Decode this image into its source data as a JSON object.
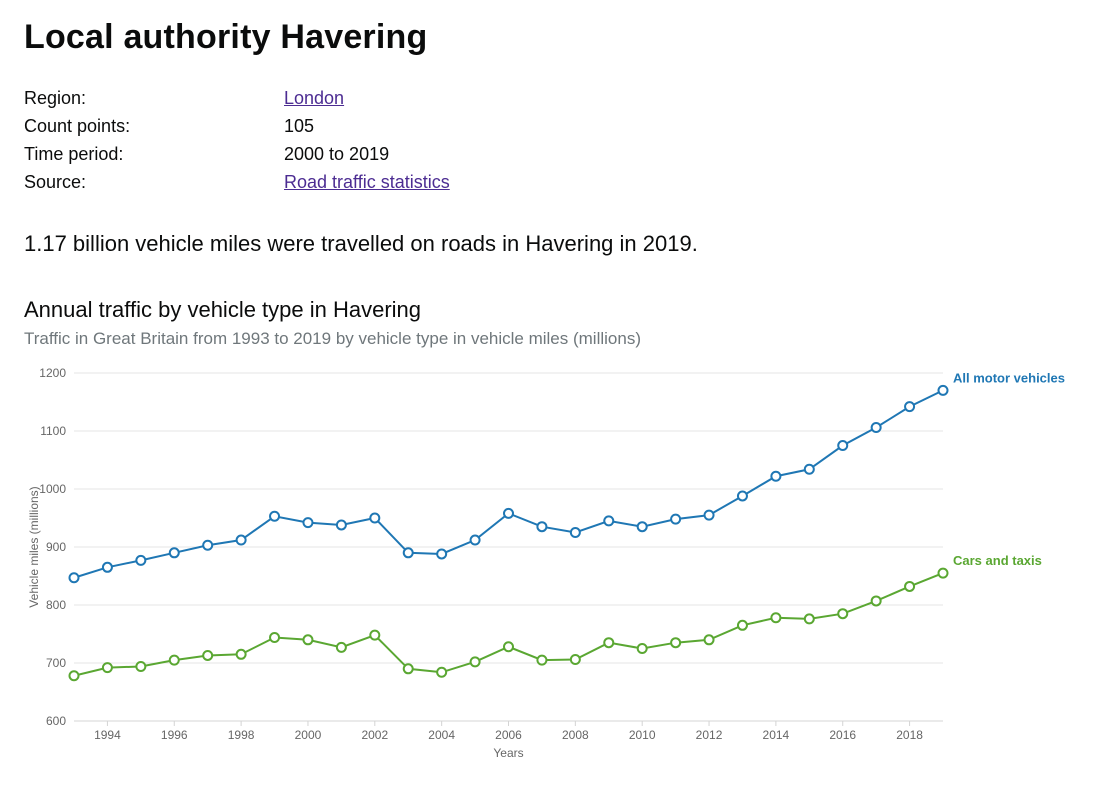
{
  "header": {
    "title": "Local authority Havering"
  },
  "meta": {
    "labels": {
      "region": "Region:",
      "count_points": "Count points:",
      "time_period": "Time period:",
      "source": "Source:"
    },
    "region_value": "London",
    "count_points_value": "105",
    "time_period_value": "2000 to 2019",
    "source_value": "Road traffic statistics"
  },
  "summary_text": "1.17 billion vehicle miles were travelled on roads in Havering in 2019.",
  "chart": {
    "title": "Annual traffic by vehicle type in Havering",
    "subtitle": "Traffic in Great Britain from 1993 to 2019 by vehicle type in vehicle miles (millions)",
    "type": "line",
    "xlabel": "Years",
    "ylabel": "Vehicle miles (millions)",
    "years": [
      1993,
      1994,
      1995,
      1996,
      1997,
      1998,
      1999,
      2000,
      2001,
      2002,
      2003,
      2004,
      2005,
      2006,
      2007,
      2008,
      2009,
      2010,
      2011,
      2012,
      2013,
      2014,
      2015,
      2016,
      2017,
      2018,
      2019
    ],
    "xticks": [
      1994,
      1996,
      1998,
      2000,
      2002,
      2004,
      2006,
      2008,
      2010,
      2012,
      2014,
      2016,
      2018
    ],
    "ylim": [
      600,
      1200
    ],
    "yticks": [
      600,
      700,
      800,
      900,
      1000,
      1100,
      1200
    ],
    "grid_color": "#e6e6e6",
    "axis_color": "#d4d4d4",
    "axis_label_color": "#666666",
    "tick_label_color": "#666666",
    "tick_fontsize": 12,
    "axis_label_fontsize": 12,
    "line_width": 2,
    "marker_radius": 4.5,
    "marker_fill": "#ffffff",
    "background_color": "#ffffff",
    "series": [
      {
        "name": "All motor vehicles",
        "color": "#1f77b4",
        "label_color": "#1f77b4",
        "values": [
          847,
          865,
          877,
          890,
          903,
          912,
          953,
          942,
          938,
          950,
          890,
          888,
          912,
          958,
          935,
          925,
          945,
          935,
          948,
          955,
          988,
          1022,
          1034,
          1075,
          1106,
          1142,
          1170
        ]
      },
      {
        "name": "Cars and taxis",
        "color": "#5aa732",
        "label_color": "#5aa732",
        "values": [
          678,
          692,
          694,
          705,
          713,
          715,
          744,
          740,
          727,
          748,
          690,
          684,
          702,
          728,
          705,
          706,
          735,
          725,
          735,
          740,
          765,
          778,
          776,
          785,
          807,
          832,
          855
        ]
      }
    ]
  }
}
